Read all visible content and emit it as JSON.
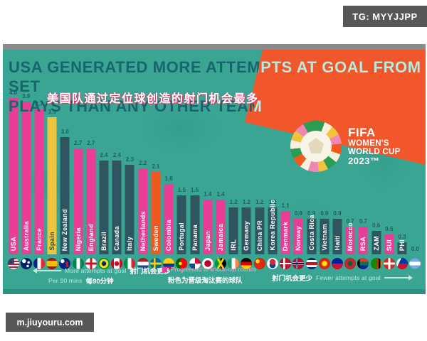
{
  "watermarks": {
    "top_right": "TG: MYYJJPP",
    "bottom_left": "m.jiuyouru.com"
  },
  "header": {
    "title_line1": "USA GENERATED MORE ATTEMPTS AT GOAL FROM SET",
    "title_line2": "PLAYS THAN ANY OTHER TEAM",
    "subtitle_zh": "美国队通过定位球创造的射门机会最多"
  },
  "logo": {
    "fifa": "FIFA",
    "womens": "WOMEN'S",
    "worldcup": "WORLD CUP",
    "year": "2023™"
  },
  "legend": {
    "more_en": "More attempts at goal",
    "more_zh": "射门机会更多",
    "per90_en": "Per 90 mins",
    "per90_zh": "每90分钟",
    "progressed_en": "Progressed to knock-out rounds",
    "progressed_zh": "粉色为晋级淘汰赛的球队",
    "fewer_zh": "射门机会更少",
    "fewer_en": "Fewer attempts at goal"
  },
  "colors": {
    "pink": "#EC3D96",
    "slate": "#2F5560",
    "yellow": "#EFC53F",
    "orange": "#F1581F",
    "background": "#3BA593",
    "orange_panel": "#F1572B",
    "title": "#17666D",
    "mint": "#BDEADC",
    "value_label": "#1C5F66"
  },
  "chart_data": {
    "type": "bar",
    "title": "USA generated more attempts at goal from set plays than any other team",
    "subtitle": "美国队通过定位球创造的射门机会最多",
    "unit_note": "Per 90 mins",
    "ylim": [
      0,
      4.0
    ],
    "legend_note": "Pink bars = progressed to knock-out rounds; Spain shown yellow, Sweden shown orange",
    "teams": [
      {
        "label": "USA",
        "value": 4.0,
        "color": "pink",
        "flag": "usa-flag",
        "flag_css": "linear-gradient(#3C3B6E,#3C3B6E) left top/55% 50% no-repeat, repeating-linear-gradient(180deg,#B22234 0 2px,#fff 2px 4px)"
      },
      {
        "label": "Australia",
        "value": 3.9,
        "color": "pink",
        "flag": "australia-flag",
        "flag_css": "radial-gradient(circle at 30% 28%, #fff 0 2.5px, transparent 3px), radial-gradient(circle at 70% 40%, #fff 0 1.5px, transparent 2px), radial-gradient(circle at 62% 72%, #fff 0 1.5px, transparent 2px) #012169"
      },
      {
        "label": "France",
        "value": 3.7,
        "color": "pink",
        "flag": "france-flag",
        "flag_css": "linear-gradient(90deg,#002395 0 33%,#fff 33% 67%,#ED2939 67%)"
      },
      {
        "label": "Spain",
        "value": 3.5,
        "color": "yellow",
        "label_dark": true,
        "flag": "spain-flag",
        "flag_css": "linear-gradient(180deg,#AA151B 0 25%,#F1BF00 25% 75%,#AA151B 75%)"
      },
      {
        "label": "New Zealand",
        "value": 3.0,
        "color": "slate",
        "flag": "new-zealand-flag",
        "flag_css": "radial-gradient(circle at 30% 28%, #fff 0 2.5px, transparent 3px), radial-gradient(circle at 68% 45%, #CC142B 0 1.8px, transparent 2.3px), radial-gradient(circle at 72% 70%, #CC142B 0 1.8px, transparent 2.3px) #00247D"
      },
      {
        "label": "Nigeria",
        "value": 2.7,
        "color": "pink",
        "flag": "nigeria-flag",
        "flag_css": "linear-gradient(90deg,#008751 0 33%,#fff 33% 67%,#008751 67%)"
      },
      {
        "label": "England",
        "value": 2.7,
        "color": "pink",
        "flag": "england-flag",
        "flag_css": "linear-gradient(90deg,transparent 0 40%,#CE1124 40% 60%,transparent 60%), linear-gradient(180deg,transparent 0 40%,#CE1124 40% 60%,transparent 60%) #fff"
      },
      {
        "label": "Brazil",
        "value": 2.4,
        "color": "slate",
        "flag": "brazil-flag",
        "flag_css": "radial-gradient(circle at 50% 50%, #002776 0 3px, transparent 3.5px), radial-gradient(circle at 50% 50%, #FEDF00 0 6px, transparent 6.5px) #009C3B"
      },
      {
        "label": "Canada",
        "value": 2.4,
        "color": "slate",
        "flag": "canada-flag",
        "flag_css": "radial-gradient(circle at 50% 50%, #D80621 0 3px, transparent 3.5px), linear-gradient(90deg,#D80621 0 25%,transparent 25% 75%,#D80621 75%) #fff"
      },
      {
        "label": "Italy",
        "value": 2.3,
        "color": "slate",
        "flag": "italy-flag",
        "flag_css": "linear-gradient(90deg,#009246 0 33%,#fff 33% 67%,#CE2B37 67%)"
      },
      {
        "label": "Netherlands",
        "value": 2.2,
        "color": "pink",
        "flag": "netherlands-flag",
        "flag_css": "linear-gradient(180deg,#AE1C28 0 33%,#fff 33% 67%,#21468B 67%)"
      },
      {
        "label": "Sweden",
        "value": 2.1,
        "color": "orange",
        "flag": "sweden-flag",
        "flag_css": "linear-gradient(90deg,transparent 0 30%,#FECC02 30% 46%,transparent 46%), linear-gradient(180deg,transparent 0 42%,#FECC02 42% 58%,transparent 58%) #006AA7"
      },
      {
        "label": "Colombia",
        "value": 1.8,
        "color": "pink",
        "flag": "colombia-flag",
        "flag_css": "linear-gradient(180deg,#FCD116 0 50%,#003893 50% 75%,#CE1126 75%)"
      },
      {
        "label": "Portugal",
        "value": 1.5,
        "color": "slate",
        "flag": "portugal-flag",
        "flag_css": "radial-gradient(circle at 40% 50%, #FFDE00 0 2px, transparent 2.5px), linear-gradient(90deg,#006600 0 40%,#FF0000 40%)"
      },
      {
        "label": "Panama",
        "value": 1.5,
        "color": "slate",
        "flag": "panama-flag",
        "flag_css": "conic-gradient(#D21034 0 25%, #fff 25% 50%, #005293 50% 75%, #fff 75%)"
      },
      {
        "label": "Japan",
        "value": 1.4,
        "color": "pink",
        "flag": "japan-flag",
        "flag_css": "radial-gradient(circle at 50% 50%, #BC002D 0 4.5px, transparent 5px) #fff"
      },
      {
        "label": "Jamaica",
        "value": 1.4,
        "color": "pink",
        "flag": "jamaica-flag",
        "flag_css": "linear-gradient(60deg,transparent 0 44%,#FED100 44% 56%,transparent 56%), linear-gradient(-60deg,transparent 0 44%,#FED100 44% 56%,transparent 56%), linear-gradient(90deg,#009B3A 0 50%,#000 50%)"
      },
      {
        "label": "IRL",
        "value": 1.2,
        "color": "slate",
        "flag": "ireland-flag",
        "flag_css": "linear-gradient(90deg,#169B62 0 33%,#fff 33% 67%,#FF883E 67%)"
      },
      {
        "label": "Germany",
        "value": 1.2,
        "color": "slate",
        "flag": "germany-flag",
        "flag_css": "linear-gradient(180deg,#000 0 33%,#DD0000 33% 67%,#FFCE00 67%)"
      },
      {
        "label": "China PR",
        "value": 1.2,
        "color": "slate",
        "flag": "china-flag",
        "flag_css": "radial-gradient(circle at 32% 30%, #FFDE00 0 2.5px, transparent 3px) #DE2910"
      },
      {
        "label": "Korea Republic",
        "value": 1.2,
        "color": "slate",
        "flag": "korea-republic-flag",
        "flag_css": "radial-gradient(circle at 50% 36%, #CD2E3A 0 4px, transparent 4.5px), radial-gradient(circle at 50% 64%, #0047A0 0 4px, transparent 4.5px) #fff"
      },
      {
        "label": "Denmark",
        "value": 1.1,
        "color": "pink",
        "flag": "denmark-flag",
        "flag_css": "linear-gradient(90deg,transparent 0 32%,#fff 32% 46%,transparent 46%), linear-gradient(180deg,transparent 0 43%,#fff 43% 57%,transparent 57%) #C8102E"
      },
      {
        "label": "Norway",
        "value": 0.9,
        "color": "pink",
        "flag": "norway-flag",
        "flag_css": "linear-gradient(90deg,transparent 0 34%,#00205B 34% 44%,transparent 44%), linear-gradient(180deg,transparent 0 45%,#00205B 45% 55%,transparent 55%), linear-gradient(90deg,transparent 0 30%,#fff 30% 48%,transparent 48%), linear-gradient(180deg,transparent 0 41%,#fff 41% 59%,transparent 59%) #BA0C2F"
      },
      {
        "label": "Costa Rica",
        "value": 0.9,
        "color": "slate",
        "flag": "costa-rica-flag",
        "flag_css": "linear-gradient(180deg,#002B7F 0 18%,#fff 18% 36%,#CE1126 36% 64%,#fff 64% 82%,#002B7F 82%)"
      },
      {
        "label": "Vietnam",
        "value": 0.9,
        "color": "slate",
        "flag": "vietnam-flag",
        "flag_css": "radial-gradient(circle at 50% 50%, #FFDE00 0 3.5px, transparent 4px) #DA251D"
      },
      {
        "label": "Haiti",
        "value": 0.9,
        "color": "slate",
        "flag": "haiti-flag",
        "flag_css": "linear-gradient(180deg,#00209F 0 50%,#D21034 50%)"
      },
      {
        "label": "Morocco",
        "value": 0.7,
        "color": "pink",
        "flag": "morocco-flag",
        "flag_css": "radial-gradient(circle at 50% 50%, #006233 0 3px, transparent 3.5px) #C1272D"
      },
      {
        "label": "RSA",
        "value": 0.7,
        "color": "pink",
        "flag": "south-africa-flag",
        "flag_css": "linear-gradient(90deg,#000 0 22%,transparent 22%), linear-gradient(180deg,#DE3831 0 33%,#007A4D 33% 67%,#002395 67%)"
      },
      {
        "label": "ZAM",
        "value": 0.6,
        "color": "slate",
        "flag": "zambia-flag",
        "flag_css": "linear-gradient(90deg,transparent 0 55%,#DE2010 55% 70%,#000 70% 85%,#EF7D00 85%) #198A00"
      },
      {
        "label": "SUI",
        "value": 0.5,
        "color": "pink",
        "flag": "switzerland-flag",
        "flag_css": "linear-gradient(90deg,transparent 0 41%,#fff 41% 59%,transparent 59%), linear-gradient(180deg,transparent 0 41%,#fff 41% 59%,transparent 59%) #DA291C"
      },
      {
        "label": "PHI",
        "value": 0.3,
        "color": "slate",
        "flag": "philippines-flag",
        "flag_css": "linear-gradient(115deg,#fff 0 30%,transparent 30%), linear-gradient(180deg,#0038A8 0 50%,#CE1126 50%)"
      },
      {
        "label": "",
        "value": 0.0,
        "color": "slate",
        "flag": "argentina-flag",
        "flag_css": "linear-gradient(180deg,#74ACDF 0 33%,#fff 33% 67%,#74ACDF 67%)"
      }
    ]
  }
}
